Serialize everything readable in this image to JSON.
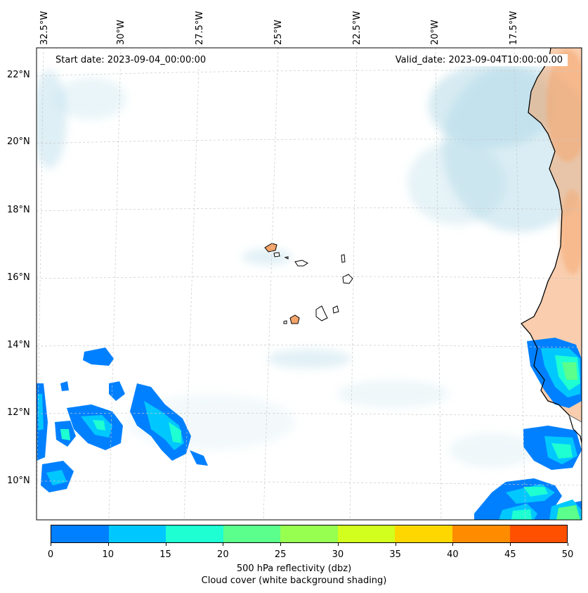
{
  "map": {
    "start_date": "Start date: 2023-09-04_00:00:00",
    "valid_date": "Valid_date: 2023-09-04T10:00:00.00",
    "lon_labels": [
      "32.5°W",
      "30°W",
      "27.5°W",
      "25°W",
      "22.5°W",
      "20°W",
      "17.5°W"
    ],
    "lat_labels": [
      "22°N",
      "20°N",
      "18°N",
      "16°N",
      "14°N",
      "12°N",
      "10°N"
    ]
  },
  "colorbar": {
    "ticks": [
      "0",
      "10",
      "15",
      "20",
      "25",
      "30",
      "35",
      "40",
      "45",
      "50"
    ],
    "colors": [
      "#0080ff",
      "#00c8ff",
      "#1effd2",
      "#5aff8c",
      "#96ff50",
      "#d2ff1e",
      "#ffd700",
      "#ff8c00",
      "#ff5000"
    ],
    "label": "500 hPa reflectivity (dbz)",
    "sublabel": "Cloud cover (white background shading)"
  },
  "style": {
    "land_color": "#f4a46a",
    "cloud_color": "#add8e6",
    "grid_color": "#c8c8c8"
  }
}
